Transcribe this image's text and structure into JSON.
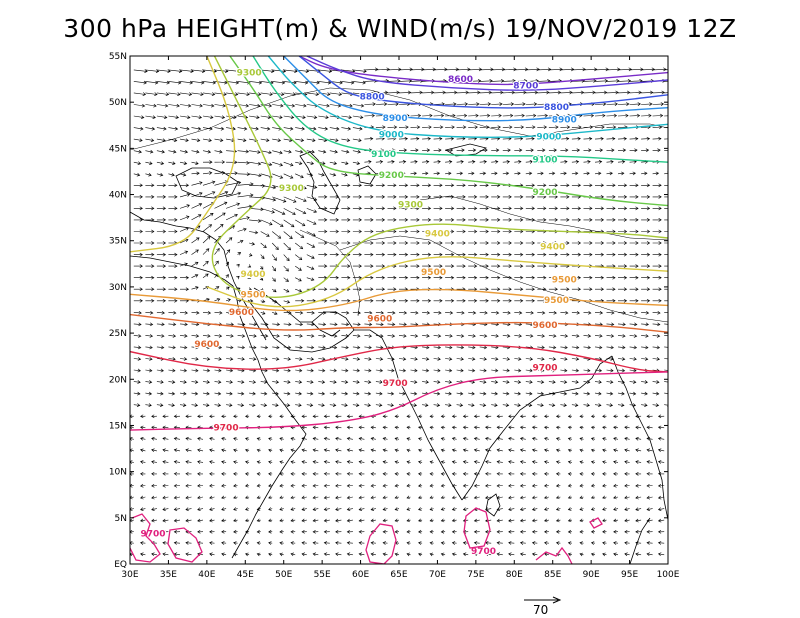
{
  "title": "300 hPa HEIGHT(m) & WIND(m/s) 19/NOV/2019 12Z",
  "map": {
    "lon_range": [
      30,
      100
    ],
    "lat_range": [
      0,
      55
    ],
    "x_ticks": [
      "30E",
      "35E",
      "40E",
      "45E",
      "50E",
      "55E",
      "60E",
      "65E",
      "70E",
      "75E",
      "80E",
      "85E",
      "90E",
      "95E",
      "100E"
    ],
    "y_ticks": [
      "EQ",
      "5N",
      "10N",
      "15N",
      "20N",
      "25N",
      "30N",
      "35N",
      "40N",
      "45N",
      "50N",
      "55N"
    ],
    "wind_reference": {
      "label": "70",
      "speed": 70
    }
  },
  "chart_data": {
    "type": "contour",
    "variable": "300 hPa geopotential height (m)",
    "contours": [
      {
        "level": 8600,
        "color": "#7a2cc8",
        "points": [
          [
            52,
            55
          ],
          [
            55,
            53.8
          ],
          [
            60,
            53
          ],
          [
            70,
            52.2
          ],
          [
            80,
            51.8
          ],
          [
            90,
            52.5
          ],
          [
            100,
            53.2
          ]
        ]
      },
      {
        "level": 8700,
        "color": "#5a3cd8",
        "points": [
          [
            53,
            55
          ],
          [
            57,
            53.5
          ],
          [
            62,
            52.2
          ],
          [
            72,
            51.5
          ],
          [
            82,
            51.2
          ],
          [
            92,
            51.8
          ],
          [
            100,
            52.4
          ]
        ]
      },
      {
        "level": 8800,
        "color": "#3a54e0",
        "points": [
          [
            52,
            55
          ],
          [
            55,
            53
          ],
          [
            58,
            51
          ],
          [
            62,
            50.2
          ],
          [
            72,
            49.5
          ],
          [
            82,
            49.3
          ],
          [
            92,
            50
          ],
          [
            100,
            50.8
          ]
        ]
      },
      {
        "level": 8900,
        "color": "#2c8ee8",
        "points": [
          [
            50,
            55
          ],
          [
            53,
            52.5
          ],
          [
            56,
            50
          ],
          [
            62,
            48.6
          ],
          [
            72,
            48
          ],
          [
            82,
            48
          ],
          [
            92,
            49
          ],
          [
            100,
            49.4
          ]
        ]
      },
      {
        "level": 9000,
        "color": "#1cb8c8",
        "points": [
          [
            48,
            55
          ],
          [
            51,
            52
          ],
          [
            55,
            49
          ],
          [
            62,
            46.8
          ],
          [
            72,
            46.2
          ],
          [
            82,
            46.2
          ],
          [
            92,
            47
          ],
          [
            100,
            47.6
          ]
        ]
      },
      {
        "level": 9100,
        "color": "#24c888",
        "points": [
          [
            46,
            55
          ],
          [
            49,
            51
          ],
          [
            53,
            47
          ],
          [
            58,
            45
          ],
          [
            66,
            44.4
          ],
          [
            76,
            44.2
          ],
          [
            86,
            44.2
          ],
          [
            94,
            43.8
          ],
          [
            100,
            43.5
          ]
        ]
      },
      {
        "level": 9200,
        "color": "#68c848",
        "points": [
          [
            43,
            55
          ],
          [
            46,
            51.5
          ],
          [
            49,
            47.5
          ],
          [
            53,
            44.5
          ],
          [
            56,
            42.5
          ],
          [
            64,
            42
          ],
          [
            74,
            41.6
          ],
          [
            84,
            40.5
          ],
          [
            92,
            39.4
          ],
          [
            100,
            38.8
          ]
        ]
      },
      {
        "level": 9300,
        "color": "#a8c838",
        "points": [
          [
            41,
            55
          ],
          [
            44,
            50
          ],
          [
            47,
            45
          ],
          [
            49,
            41
          ],
          [
            45,
            38
          ],
          [
            40,
            34
          ],
          [
            42,
            30
          ],
          [
            49,
            28.5
          ],
          [
            55,
            30
          ],
          [
            58,
            33.5
          ],
          [
            62,
            36
          ],
          [
            70,
            37
          ],
          [
            78,
            36.3
          ],
          [
            86,
            36
          ],
          [
            94,
            35.8
          ],
          [
            100,
            35.3
          ]
        ]
      },
      {
        "level": 9400,
        "color": "#d8c840",
        "points": [
          [
            40,
            55
          ],
          [
            43,
            49
          ],
          [
            44,
            43
          ],
          [
            40,
            38
          ],
          [
            37,
            34.5
          ],
          [
            30,
            33.8
          ]
        ]
      },
      {
        "level": 9400,
        "color": "#d8c840",
        "points": [
          [
            40,
            30
          ],
          [
            48,
            27.5
          ],
          [
            56,
            28.5
          ],
          [
            62,
            32
          ],
          [
            70,
            33.5
          ],
          [
            80,
            32.8
          ],
          [
            90,
            32.2
          ],
          [
            100,
            31.7
          ]
        ]
      },
      {
        "level": 9500,
        "color": "#e89a38",
        "points": [
          [
            30,
            29.2
          ],
          [
            40,
            28.5
          ],
          [
            50,
            27.2
          ],
          [
            58,
            28
          ],
          [
            64,
            29.6
          ],
          [
            72,
            29.8
          ],
          [
            82,
            29
          ],
          [
            92,
            28.3
          ],
          [
            100,
            28
          ]
        ]
      },
      {
        "level": 9600,
        "color": "#e06830",
        "points": [
          [
            30,
            27
          ],
          [
            40,
            26
          ],
          [
            50,
            25.2
          ],
          [
            58,
            25.6
          ],
          [
            64,
            25.6
          ],
          [
            72,
            26
          ],
          [
            82,
            26.2
          ],
          [
            92,
            25.8
          ],
          [
            100,
            25.1
          ]
        ]
      },
      {
        "level": 9700,
        "color": "#e02848",
        "points": [
          [
            30,
            23
          ],
          [
            40,
            21.2
          ],
          [
            50,
            21
          ],
          [
            58,
            22.5
          ],
          [
            64,
            23.5
          ],
          [
            72,
            23.8
          ],
          [
            82,
            23.5
          ],
          [
            90,
            22.3
          ],
          [
            96,
            21
          ],
          [
            100,
            20.8
          ]
        ]
      },
      {
        "level": 9700,
        "color": "#e0207e",
        "points": [
          [
            30,
            14.5
          ],
          [
            40,
            14.7
          ],
          [
            50,
            14.8
          ],
          [
            58,
            15.4
          ],
          [
            64,
            16.5
          ],
          [
            70,
            19
          ],
          [
            76,
            20.2
          ],
          [
            84,
            20.4
          ],
          [
            92,
            20.6
          ],
          [
            100,
            20.8
          ]
        ]
      }
    ],
    "contour_labels": [
      {
        "text": "8600",
        "lon": 73,
        "lat": 52.5,
        "level": 8600
      },
      {
        "text": "8700",
        "lon": 81.5,
        "lat": 51.8,
        "level": 8700
      },
      {
        "text": "8800",
        "lon": 61.5,
        "lat": 50.6,
        "level": 8800
      },
      {
        "text": "8800",
        "lon": 85.5,
        "lat": 49.5,
        "level": 8800
      },
      {
        "text": "8900",
        "lon": 64.5,
        "lat": 48.3,
        "level": 8900
      },
      {
        "text": "8900",
        "lon": 86.5,
        "lat": 48.1,
        "level": 8900
      },
      {
        "text": "9000",
        "lon": 64,
        "lat": 46.5,
        "level": 9000
      },
      {
        "text": "9000",
        "lon": 84.5,
        "lat": 46.3,
        "level": 9000
      },
      {
        "text": "9100",
        "lon": 63,
        "lat": 44.4,
        "level": 9100
      },
      {
        "text": "9100",
        "lon": 84,
        "lat": 43.8,
        "level": 9100
      },
      {
        "text": "9200",
        "lon": 64,
        "lat": 42.1,
        "level": 9200
      },
      {
        "text": "9200",
        "lon": 84,
        "lat": 40.3,
        "level": 9200
      },
      {
        "text": "9300",
        "lon": 45.5,
        "lat": 53.2,
        "level": 9300
      },
      {
        "text": "9300",
        "lon": 51,
        "lat": 40.7,
        "level": 9300
      },
      {
        "text": "9300",
        "lon": 66.5,
        "lat": 38.9,
        "level": 9300
      },
      {
        "text": "9400",
        "lon": 70,
        "lat": 35.8,
        "level": 9400
      },
      {
        "text": "9400",
        "lon": 46,
        "lat": 31.4,
        "level": 9400
      },
      {
        "text": "9400",
        "lon": 85,
        "lat": 34.4,
        "level": 9400
      },
      {
        "text": "9500",
        "lon": 46,
        "lat": 29.2,
        "level": 9500
      },
      {
        "text": "9500",
        "lon": 69.5,
        "lat": 31.6,
        "level": 9500
      },
      {
        "text": "9500",
        "lon": 85.5,
        "lat": 28.6,
        "level": 9500
      },
      {
        "text": "9500",
        "lon": 86.5,
        "lat": 30.8,
        "level": 9500
      },
      {
        "text": "9600",
        "lon": 44.5,
        "lat": 27.3,
        "level": 9600
      },
      {
        "text": "9600",
        "lon": 84,
        "lat": 25.9,
        "level": 9600
      },
      {
        "text": "9600",
        "lon": 40,
        "lat": 23.8,
        "level": 9600
      },
      {
        "text": "9600",
        "lon": 62.5,
        "lat": 26.6,
        "level": 9600
      },
      {
        "text": "9700",
        "lon": 84,
        "lat": 21.3,
        "level": 9700
      },
      {
        "text": "9700",
        "lon": 64.5,
        "lat": 19.6,
        "level": 9700
      },
      {
        "text": "9700",
        "lon": 42.5,
        "lat": 14.8,
        "level": 9700
      },
      {
        "text": "9700",
        "lon": 33,
        "lat": 3.3,
        "level": 9700
      },
      {
        "text": "9700",
        "lon": 76,
        "lat": 1.4,
        "level": 9700
      }
    ]
  }
}
